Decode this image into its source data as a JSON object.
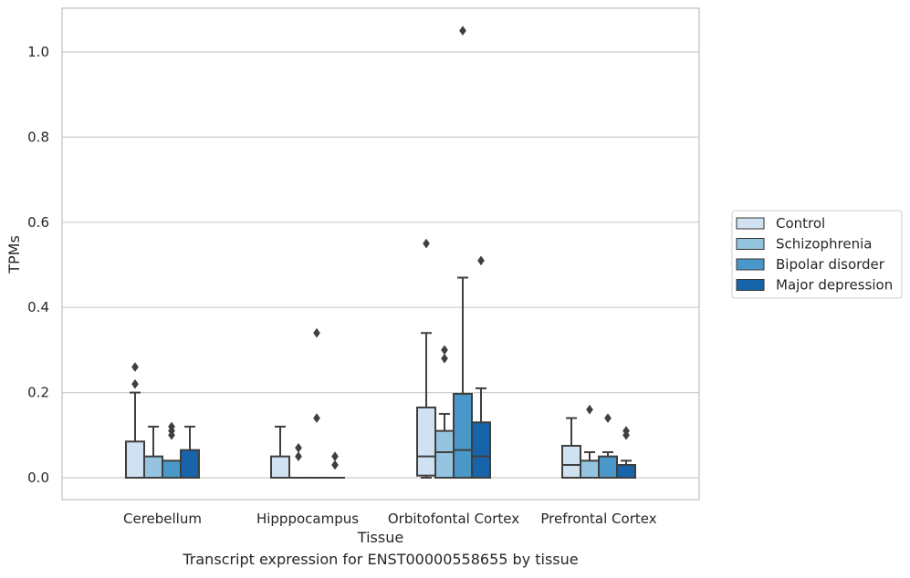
{
  "chart_data": {
    "type": "box",
    "xlabel": "Tissue",
    "ylabel": "TPMs",
    "caption": "Transcript expression for ENST00000558655 by tissue",
    "ylim": [
      -0.05,
      1.1
    ],
    "y_ticks": [
      0.0,
      0.2,
      0.4,
      0.6,
      0.8,
      1.0
    ],
    "y_tick_labels": [
      "0.0",
      "0.2",
      "0.4",
      "0.6",
      "0.8",
      "1.0"
    ],
    "grid": "horizontal",
    "legend_position": "right",
    "categories": [
      "Cerebellum",
      "Hipppocampus",
      "Orbitofontal Cortex",
      "Prefrontal Cortex"
    ],
    "series": [
      {
        "name": "Control",
        "color": "#d0e1f2",
        "boxes": [
          {
            "q1": 0.0,
            "median": 0.0,
            "q3": 0.085,
            "whisker_low": 0.0,
            "whisker_high": 0.2,
            "outliers": [
              0.22,
              0.26
            ]
          },
          {
            "q1": 0.0,
            "median": 0.0,
            "q3": 0.05,
            "whisker_low": 0.0,
            "whisker_high": 0.12,
            "outliers": []
          },
          {
            "q1": 0.005,
            "median": 0.05,
            "q3": 0.165,
            "whisker_low": 0.0,
            "whisker_high": 0.34,
            "outliers": [
              0.55
            ]
          },
          {
            "q1": 0.0,
            "median": 0.03,
            "q3": 0.075,
            "whisker_low": 0.0,
            "whisker_high": 0.14,
            "outliers": []
          }
        ]
      },
      {
        "name": "Schizophrenia",
        "color": "#94c4df",
        "boxes": [
          {
            "q1": 0.0,
            "median": 0.0,
            "q3": 0.05,
            "whisker_low": 0.0,
            "whisker_high": 0.12,
            "outliers": []
          },
          {
            "q1": 0.0,
            "median": 0.0,
            "q3": 0.0,
            "whisker_low": 0.0,
            "whisker_high": 0.0,
            "outliers": [
              0.05,
              0.07
            ]
          },
          {
            "q1": 0.0,
            "median": 0.06,
            "q3": 0.11,
            "whisker_low": 0.0,
            "whisker_high": 0.15,
            "outliers": [
              0.28,
              0.3
            ]
          },
          {
            "q1": 0.0,
            "median": 0.0,
            "q3": 0.04,
            "whisker_low": 0.0,
            "whisker_high": 0.06,
            "outliers": [
              0.16
            ]
          }
        ]
      },
      {
        "name": "Bipolar disorder",
        "color": "#4a98c9",
        "boxes": [
          {
            "q1": 0.0,
            "median": 0.0,
            "q3": 0.04,
            "whisker_low": 0.0,
            "whisker_high": 0.04,
            "outliers": [
              0.1,
              0.11,
              0.12
            ]
          },
          {
            "q1": 0.0,
            "median": 0.0,
            "q3": 0.0,
            "whisker_low": 0.0,
            "whisker_high": 0.0,
            "outliers": [
              0.14,
              0.34
            ]
          },
          {
            "q1": 0.0,
            "median": 0.065,
            "q3": 0.197,
            "whisker_low": 0.0,
            "whisker_high": 0.47,
            "outliers": [
              1.05
            ]
          },
          {
            "q1": 0.0,
            "median": 0.0,
            "q3": 0.05,
            "whisker_low": 0.0,
            "whisker_high": 0.06,
            "outliers": [
              0.14
            ]
          }
        ]
      },
      {
        "name": "Major depression",
        "color": "#1764ab",
        "boxes": [
          {
            "q1": 0.0,
            "median": 0.0,
            "q3": 0.065,
            "whisker_low": 0.0,
            "whisker_high": 0.12,
            "outliers": []
          },
          {
            "q1": 0.0,
            "median": 0.0,
            "q3": 0.0,
            "whisker_low": 0.0,
            "whisker_high": 0.0,
            "outliers": [
              0.03,
              0.05
            ]
          },
          {
            "q1": 0.0,
            "median": 0.05,
            "q3": 0.13,
            "whisker_low": 0.0,
            "whisker_high": 0.21,
            "outliers": [
              0.51
            ]
          },
          {
            "q1": 0.0,
            "median": 0.0,
            "q3": 0.03,
            "whisker_low": 0.0,
            "whisker_high": 0.04,
            "outliers": [
              0.1,
              0.11
            ]
          }
        ]
      }
    ]
  }
}
